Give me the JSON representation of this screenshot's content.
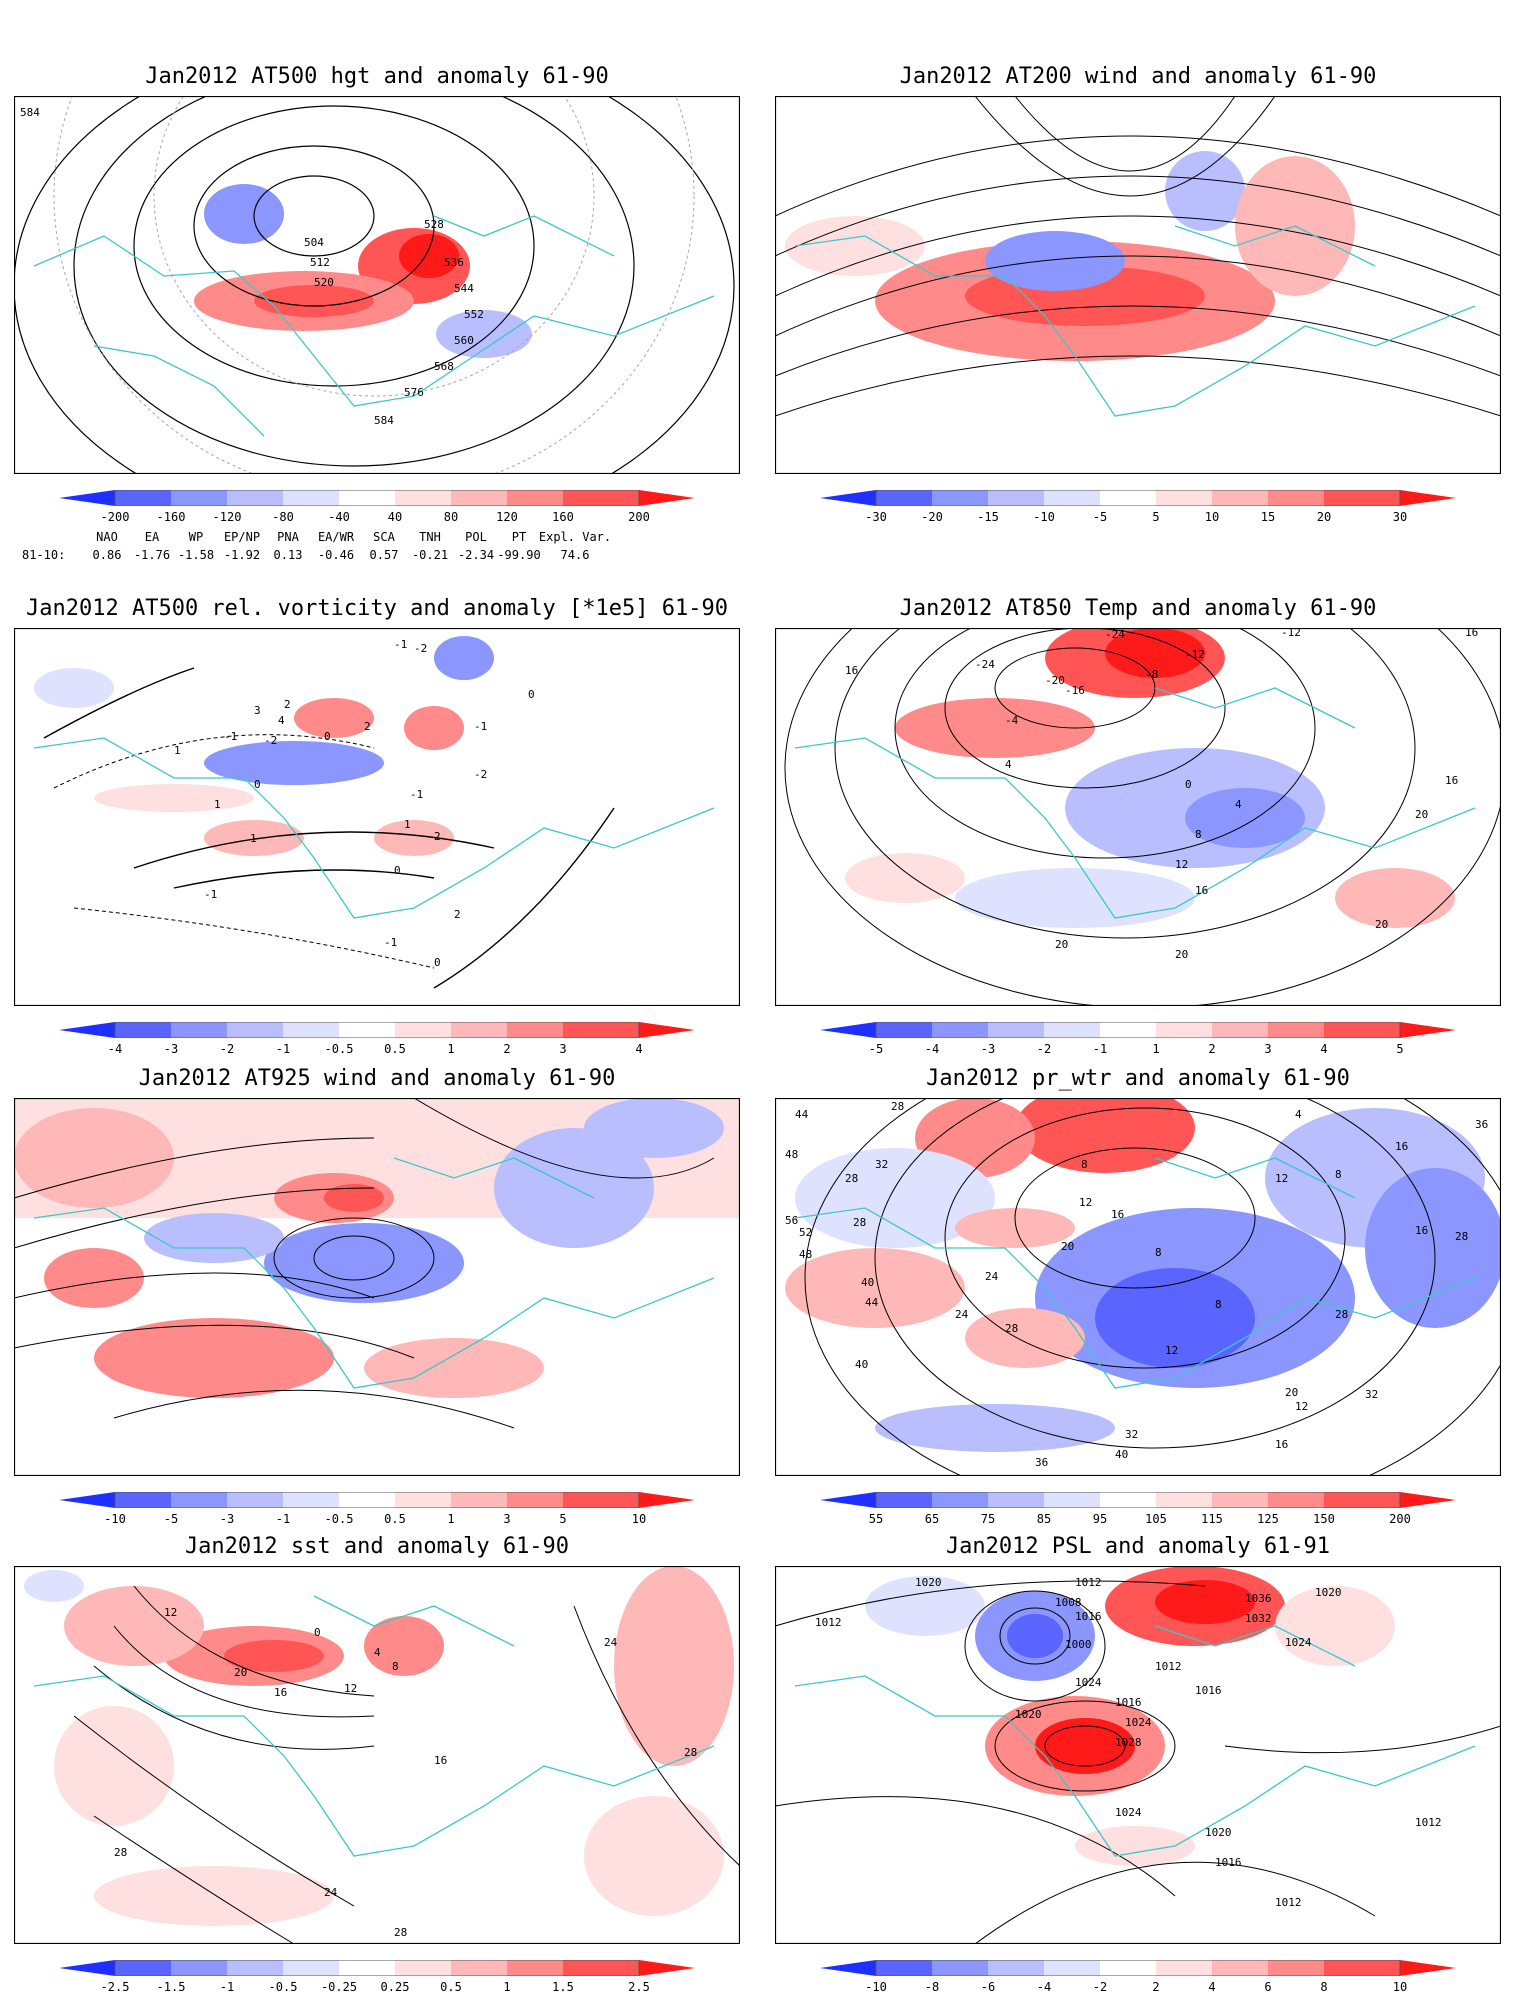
{
  "colors": {
    "coast": "#3cc8c8",
    "contour": "#000000",
    "frame": "#000000",
    "graticule": "#a8a8a8",
    "scale": [
      "#1f2fff",
      "#5a64ff",
      "#8c96ff",
      "#b9beff",
      "#dfe2ff",
      "#ffffff",
      "#ffe0e0",
      "#ffb8b8",
      "#ff8a8a",
      "#ff5555",
      "#ff1a1a"
    ]
  },
  "panels": [
    {
      "title": "Jan2012 AT500 hgt and anomaly 61-90",
      "colorbar": [
        "-200",
        "-160",
        "-120",
        "-80",
        "-40",
        "40",
        "80",
        "120",
        "160",
        "200"
      ],
      "contour_labels": [
        "584",
        "504",
        "512",
        "520",
        "528",
        "536",
        "544",
        "552",
        "560",
        "568",
        "576",
        "584"
      ],
      "indices": {
        "names": [
          "NAO",
          "EA",
          "WP",
          "EP/NP",
          "PNA",
          "EA/WR",
          "SCA",
          "TNH",
          "POL",
          "PT",
          "Expl. Var."
        ],
        "row_label": "81-10:",
        "values": [
          "0.86",
          "-1.76",
          "-1.58",
          "-1.92",
          "0.13",
          "-0.46",
          "0.57",
          "-0.21",
          "-2.34",
          "-99.90",
          "74.6"
        ]
      }
    },
    {
      "title": "Jan2012 AT200 wind and anomaly 61-90",
      "colorbar": [
        "-30",
        "-20",
        "-15",
        "-10",
        "-5",
        "5",
        "10",
        "15",
        "20",
        "30"
      ],
      "contour_labels": []
    },
    {
      "title": "Jan2012 AT500 rel. vorticity and anomaly [*1e5] 61-90",
      "colorbar": [
        "-4",
        "-3",
        "-2",
        "-1",
        "-0.5",
        "0.5",
        "1",
        "2",
        "3",
        "4"
      ],
      "contour_labels": [
        "-1",
        "-2",
        "2",
        "3",
        "4",
        "-2",
        "-1",
        "1",
        "0",
        "2",
        "1",
        "-1",
        "0",
        "1",
        "2",
        "-1",
        "0",
        "-2",
        "-1",
        "0",
        "1",
        "2",
        "-1",
        "0"
      ]
    },
    {
      "title": "Jan2012 AT850 Temp and anomaly 61-90",
      "colorbar": [
        "-5",
        "-4",
        "-3",
        "-2",
        "-1",
        "1",
        "2",
        "3",
        "4",
        "5"
      ],
      "contour_labels": [
        "-24",
        "-12",
        "16",
        "-24",
        "-20",
        "-16",
        "-8",
        "-12",
        "-4",
        "16",
        "4",
        "0",
        "16",
        "4",
        "20",
        "8",
        "12",
        "16",
        "20",
        "20",
        "20"
      ]
    },
    {
      "title": "Jan2012 AT925 wind and anomaly 61-90",
      "colorbar": [
        "-10",
        "-5",
        "-3",
        "-1",
        "-0.5",
        "0.5",
        "1",
        "3",
        "5",
        "10"
      ],
      "contour_labels": []
    },
    {
      "title": "Jan2012 pr_wtr and anomaly 61-90",
      "colorbar": [
        "55",
        "65",
        "75",
        "85",
        "95",
        "105",
        "115",
        "125",
        "150",
        "200"
      ],
      "contour_labels": [
        "44",
        "28",
        "48",
        "32",
        "28",
        "8",
        "12",
        "4",
        "16",
        "12",
        "8",
        "56",
        "52",
        "28",
        "16",
        "20",
        "8",
        "24",
        "16",
        "48",
        "40",
        "44",
        "24",
        "28",
        "8",
        "12",
        "36",
        "28",
        "32",
        "12",
        "40",
        "20",
        "40",
        "36",
        "16",
        "32",
        "28"
      ]
    },
    {
      "title": "Jan2012 sst and anomaly 61-90",
      "colorbar": [
        "-2.5",
        "-1.5",
        "-1",
        "-0.5",
        "-0.25",
        "0.25",
        "0.5",
        "1",
        "1.5",
        "2.5"
      ],
      "contour_labels": [
        "12",
        "0",
        "20",
        "16",
        "12",
        "4",
        "8",
        "16",
        "24",
        "28",
        "28",
        "24",
        "28"
      ]
    },
    {
      "title": "Jan2012 PSL and anomaly 61-91",
      "colorbar": [
        "-10",
        "-8",
        "-6",
        "-4",
        "-2",
        "2",
        "4",
        "6",
        "8",
        "10"
      ],
      "contour_labels": [
        "1020",
        "1012",
        "1008",
        "1016",
        "1000",
        "1024",
        "1012",
        "1036",
        "1032",
        "1020",
        "1024",
        "1016",
        "1012",
        "1020",
        "1016",
        "1024",
        "1028",
        "1024",
        "1020",
        "1016",
        "1012",
        "1012"
      ]
    }
  ]
}
